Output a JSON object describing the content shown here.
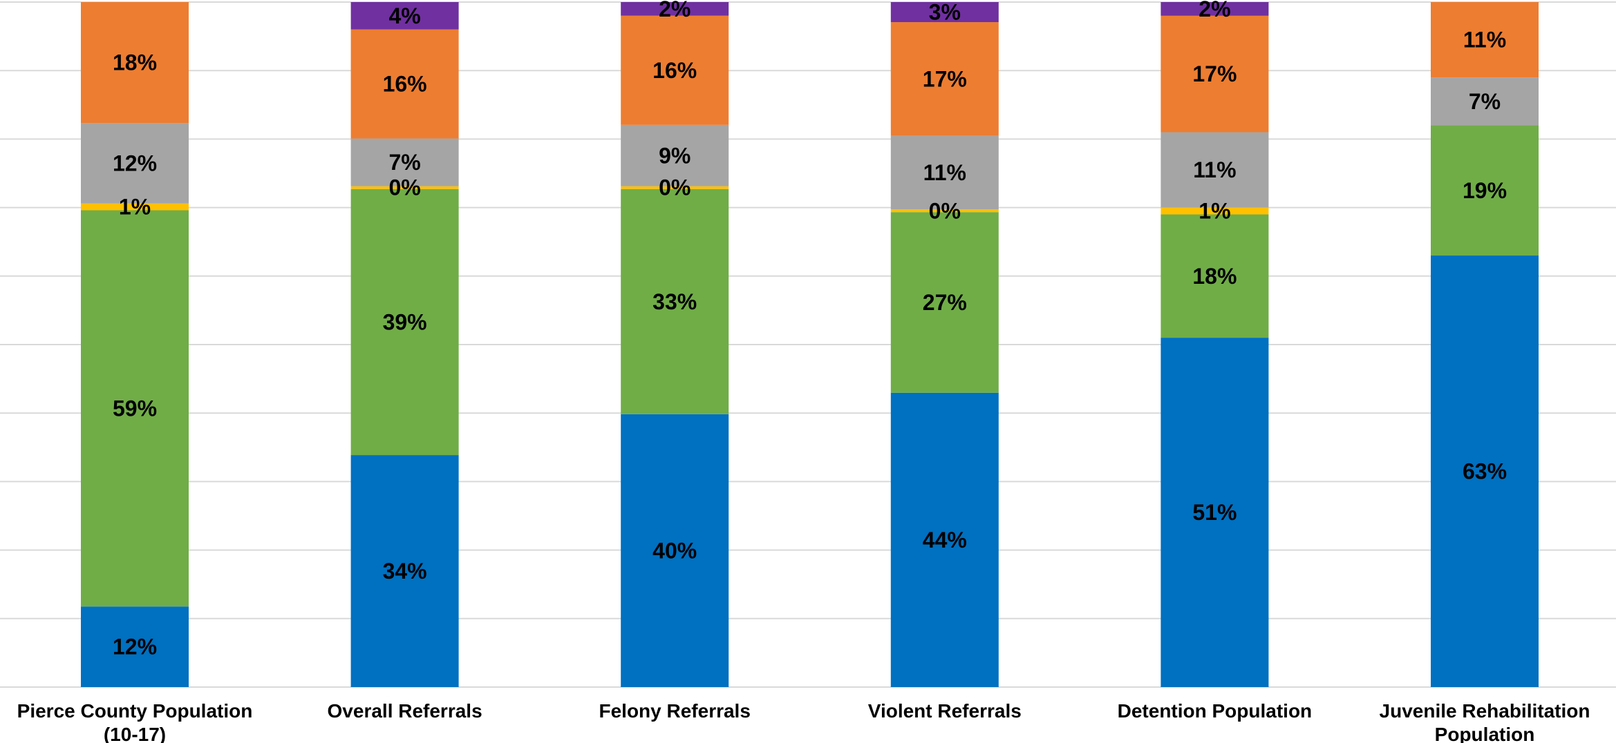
{
  "chart_data": {
    "type": "bar",
    "stacked": true,
    "percent_stacked": true,
    "categories": [
      [
        "Pierce County Population",
        "(10-17)"
      ],
      [
        "Overall Referrals"
      ],
      [
        "Felony Referrals"
      ],
      [
        "Violent Referrals"
      ],
      [
        "Detention Population"
      ],
      [
        "Juvenile Rehabilitation",
        "Population"
      ]
    ],
    "series": [
      {
        "color": "#0070C0",
        "values": [
          12,
          34,
          40,
          44,
          51,
          63
        ],
        "labels": [
          "12%",
          "34%",
          "40%",
          "44%",
          "51%",
          "63%"
        ]
      },
      {
        "color": "#70AD47",
        "values": [
          59,
          39,
          33,
          27,
          18,
          19
        ],
        "labels": [
          "59%",
          "39%",
          "33%",
          "27%",
          "18%",
          "19%"
        ]
      },
      {
        "color": "#FFC000",
        "values": [
          1,
          0.4,
          0.4,
          0.4,
          1,
          0
        ],
        "labels": [
          "1%",
          "0%",
          "0%",
          "0%",
          "1%",
          ""
        ]
      },
      {
        "color": "#A5A5A5",
        "values": [
          12,
          7,
          9,
          11,
          11,
          7
        ],
        "labels": [
          "12%",
          "7%",
          "9%",
          "11%",
          "11%",
          "7%"
        ]
      },
      {
        "color": "#ED7D31",
        "values": [
          18,
          16,
          16,
          17,
          17,
          11
        ],
        "labels": [
          "18%",
          "16%",
          "16%",
          "17%",
          "17%",
          "11%"
        ]
      },
      {
        "color": "#7030A0",
        "values": [
          0,
          4,
          2,
          3,
          2,
          0
        ],
        "labels": [
          "",
          "4%",
          "2%",
          "3%",
          "2%",
          ""
        ]
      }
    ],
    "ylim": [
      0,
      100
    ],
    "grid": true,
    "gridline_color": "#D9D9D9",
    "legend": "none",
    "title": "",
    "xlabel": "",
    "ylabel": ""
  }
}
